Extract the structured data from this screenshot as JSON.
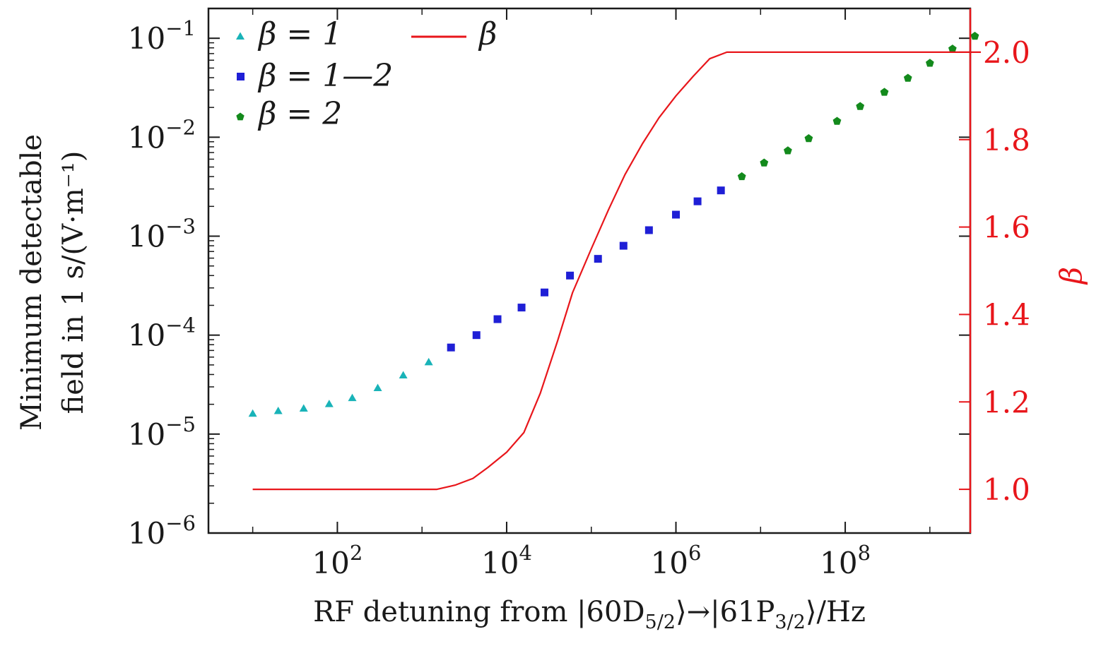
{
  "chart_data": {
    "type": "scatter",
    "xlabel": "RF detuning from |60D₅₂⟩→|61P₃₂⟩/Hz",
    "xlabel_parts": {
      "prefix": "RF detuning from |60D",
      "sub1": "5/2",
      "middle": "⟩→|61P",
      "sub2": "3/2",
      "suffix": "⟩/Hz"
    },
    "ylabel_line1": "Minimum detectable",
    "ylabel_line2": "field in 1 s/(V·m⁻¹)",
    "ylabel_right": "β",
    "x_scale": "log",
    "y_scale": "log",
    "xlim": [
      3,
      3000000000
    ],
    "ylim": [
      1e-06,
      0.2
    ],
    "y2lim": [
      0.9,
      2.1
    ],
    "grid": false,
    "legend_placement": "top-left",
    "x_ticks": [
      {
        "value": 100,
        "base": "10",
        "exp": "2"
      },
      {
        "value": 10000,
        "base": "10",
        "exp": "4"
      },
      {
        "value": 1000000,
        "base": "10",
        "exp": "6"
      },
      {
        "value": 100000000,
        "base": "10",
        "exp": "8"
      }
    ],
    "y_ticks": [
      {
        "value": 0.1,
        "base": "10",
        "exp": "−1"
      },
      {
        "value": 0.01,
        "base": "10",
        "exp": "−2"
      },
      {
        "value": 0.001,
        "base": "10",
        "exp": "−3"
      },
      {
        "value": 0.0001,
        "base": "10",
        "exp": "−4"
      },
      {
        "value": 1e-05,
        "base": "10",
        "exp": "−5"
      },
      {
        "value": 1e-06,
        "base": "10",
        "exp": "−6"
      }
    ],
    "y2_ticks": [
      {
        "value": 1.0,
        "label": "1.0"
      },
      {
        "value": 1.2,
        "label": "1.2"
      },
      {
        "value": 1.4,
        "label": "1.4"
      },
      {
        "value": 1.6,
        "label": "1.6"
      },
      {
        "value": 1.8,
        "label": "1.8"
      },
      {
        "value": 2.0,
        "label": "2.0"
      }
    ],
    "series": [
      {
        "name": "β = 1",
        "marker": "triangle",
        "color": "#19b3b8",
        "axis": "left",
        "x": [
          10,
          20,
          40,
          80,
          150,
          300,
          600,
          1200
        ],
        "y": [
          1.6e-05,
          1.7e-05,
          1.8e-05,
          2e-05,
          2.3e-05,
          2.9e-05,
          3.9e-05,
          5.3e-05
        ]
      },
      {
        "name": "β = 1—2",
        "marker": "square",
        "color": "#1f1fd6",
        "axis": "left",
        "x": [
          2200,
          4400,
          7800,
          15000,
          28000,
          56000,
          120000,
          240000,
          480000,
          1000000,
          1800000,
          3400000
        ],
        "y": [
          7.5e-05,
          0.0001,
          0.000145,
          0.00019,
          0.00027,
          0.0004,
          0.00059,
          0.0008,
          0.00115,
          0.00165,
          0.00225,
          0.0029
        ]
      },
      {
        "name": "β = 2",
        "marker": "pentagon",
        "color": "#138a1c",
        "axis": "left",
        "x": [
          6000000,
          11000000,
          21000000,
          37000000,
          80000000,
          150000000,
          290000000,
          550000000,
          1000000000,
          1850000000,
          3400000000
        ],
        "y": [
          0.004,
          0.0055,
          0.0073,
          0.0097,
          0.0145,
          0.0205,
          0.0285,
          0.0395,
          0.056,
          0.078,
          0.105
        ]
      },
      {
        "name": "β",
        "marker": "line",
        "color": "#e8161b",
        "axis": "right",
        "x": [
          10,
          100,
          1000,
          1500,
          2500,
          4000,
          6000,
          10000,
          16000,
          25000,
          40000,
          60000,
          100000,
          160000,
          250000,
          400000,
          630000,
          1000000,
          1600000,
          2500000,
          4000000,
          100000000,
          4000000000
        ],
        "y": [
          1.0,
          1.0,
          1.0,
          1.0,
          1.01,
          1.025,
          1.05,
          1.085,
          1.13,
          1.22,
          1.34,
          1.45,
          1.55,
          1.64,
          1.72,
          1.79,
          1.85,
          1.9,
          1.945,
          1.985,
          2.0,
          2.0,
          2.0
        ]
      }
    ]
  }
}
